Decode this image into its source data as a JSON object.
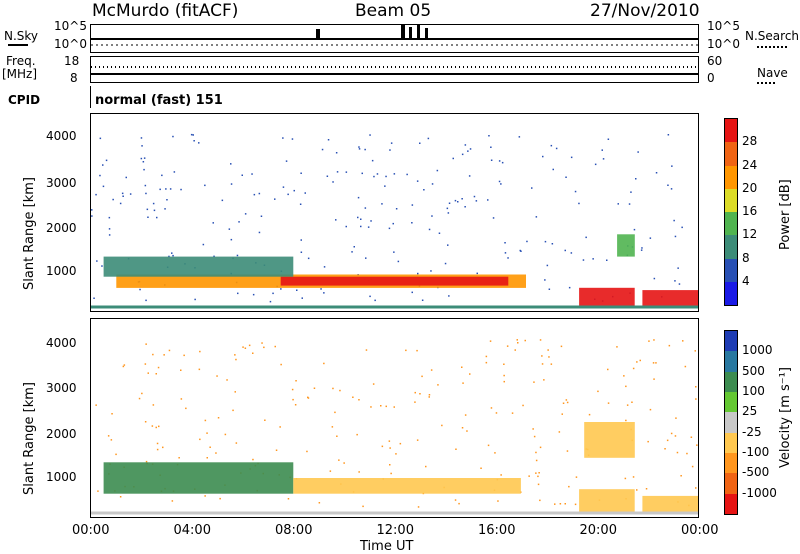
{
  "header": {
    "station": "McMurdo (fitACF)",
    "beam": "Beam 05",
    "date": "27/Nov/2010"
  },
  "top_panels": {
    "nsky_label": "N.Sky",
    "nsearch_label": "N.Search",
    "noise_ticks_left": [
      "10^5",
      "10^0"
    ],
    "noise_ticks_right": [
      "10^5",
      "10^0"
    ],
    "freq_label": "Freq.",
    "freq_unit": "[MHz]",
    "freq_ticks": [
      "18",
      "8"
    ],
    "nave_label": "Nave",
    "nave_ticks": [
      "60",
      "0"
    ],
    "cpid_label": "CPID",
    "cpid_text": "normal (fast) 151"
  },
  "chart_data": [
    {
      "type": "heatmap",
      "name": "power",
      "ylabel": "Slant Range [km]",
      "yticks": [
        "1000",
        "2000",
        "3000",
        "4000"
      ],
      "ylim": [
        180,
        4600
      ],
      "x_ticks": [
        "00:00",
        "04:00",
        "08:00",
        "12:00",
        "16:00",
        "20:00",
        "00:00"
      ],
      "colorbar_label": "Power [dB]",
      "colorbar_ticks": [
        "4",
        "8",
        "12",
        "16",
        "20",
        "24",
        "28"
      ],
      "colorbar_colors": [
        "#1a1ae6",
        "#2850b4",
        "#3c8c78",
        "#50b450",
        "#dcdc28",
        "#ff9600",
        "#f06414",
        "#e61414"
      ],
      "bands": [
        {
          "t0": 1.0,
          "t1": 17.2,
          "r0": 700,
          "r1": 1000,
          "level": 20
        },
        {
          "t0": 7.5,
          "t1": 16.5,
          "r0": 750,
          "r1": 950,
          "level": 28
        },
        {
          "t0": 19.3,
          "t1": 21.5,
          "r0": 250,
          "r1": 700,
          "level": 28
        },
        {
          "t0": 21.8,
          "t1": 24.0,
          "r0": 250,
          "r1": 650,
          "level": 28
        },
        {
          "t0": 0.5,
          "t1": 8.0,
          "r0": 950,
          "r1": 1400,
          "level": 8
        },
        {
          "t0": 20.8,
          "t1": 21.5,
          "r0": 1400,
          "r1": 1900,
          "level": 12
        }
      ]
    },
    {
      "type": "heatmap",
      "name": "velocity",
      "ylabel": "Slant Range [km]",
      "yticks": [
        "1000",
        "2000",
        "3000",
        "4000"
      ],
      "ylim": [
        180,
        4600
      ],
      "x_ticks": [
        "00:00",
        "04:00",
        "08:00",
        "12:00",
        "16:00",
        "20:00",
        "00:00"
      ],
      "xlabel": "Time UT",
      "colorbar_label": "Velocity [m s⁻¹]",
      "colorbar_ticks": [
        "1000",
        "500",
        "100",
        "25",
        "-25",
        "-100",
        "-500",
        "-1000"
      ],
      "colorbar_colors": [
        "#1e3cb4",
        "#2878a0",
        "#3c8c50",
        "#64c832",
        "#c8c8c8",
        "#ffc850",
        "#ff961e",
        "#f06414",
        "#e61414"
      ],
      "bands": [
        {
          "t0": 0.5,
          "t1": 8.0,
          "r0": 700,
          "r1": 1400,
          "level": 100
        },
        {
          "t0": 8.0,
          "t1": 17.0,
          "r0": 700,
          "r1": 1050,
          "level": -100
        },
        {
          "t0": 19.3,
          "t1": 21.5,
          "r0": 300,
          "r1": 800,
          "level": -100
        },
        {
          "t0": 21.8,
          "t1": 24.0,
          "r0": 300,
          "r1": 650,
          "level": -100
        },
        {
          "t0": 19.5,
          "t1": 21.5,
          "r0": 1500,
          "r1": 2300,
          "level": -100
        }
      ]
    }
  ]
}
